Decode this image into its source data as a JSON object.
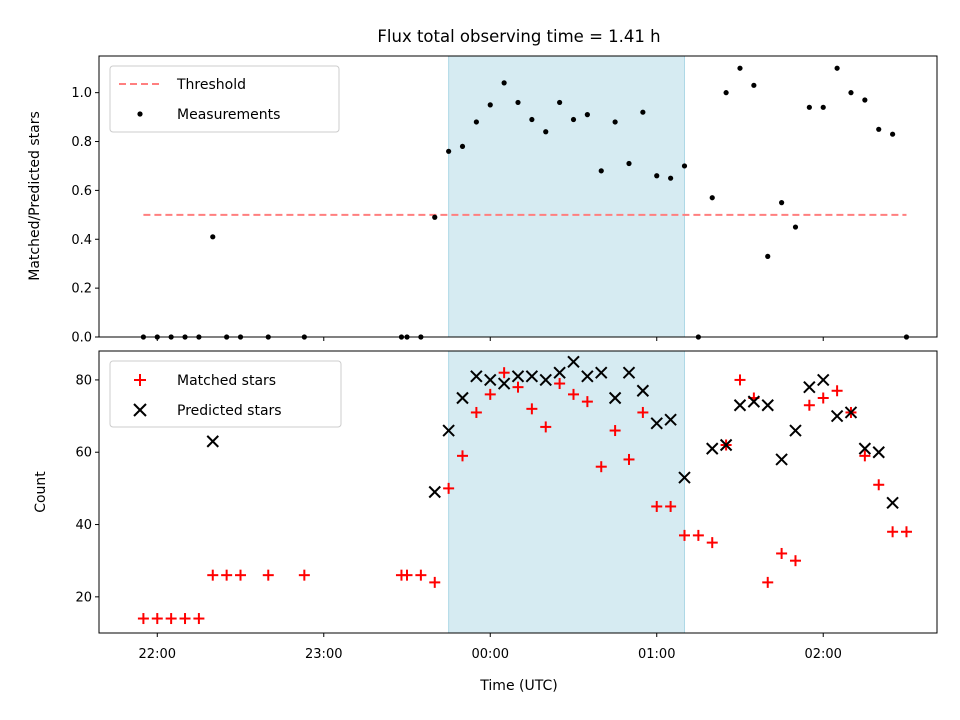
{
  "chart_data": [
    {
      "type": "scatter",
      "title": "Flux total observing time = 1.41 h",
      "xlabel": "",
      "ylabel": "Matched/Predicted stars",
      "ylim": [
        0,
        1.15
      ],
      "yticks": [
        0.0,
        0.2,
        0.4,
        0.6,
        0.8,
        1.0
      ],
      "ytick_labels": [
        "0.0",
        "0.2",
        "0.4",
        "0.6",
        "0.8",
        "1.0"
      ],
      "xticks": [
        "22:00",
        "23:00",
        "00:00",
        "01:00",
        "02:00"
      ],
      "xlim": [
        "21:39",
        "02:41"
      ],
      "shaded_interval": [
        "23:45",
        "01:10"
      ],
      "legend": {
        "placement": "upper left",
        "entries": [
          {
            "label": "Threshold",
            "style": "dashed-line",
            "color": "#ff7f7f"
          },
          {
            "label": "Measurements",
            "style": "dot",
            "color": "#000000"
          }
        ]
      },
      "series": [
        {
          "name": "Threshold",
          "style": "dashed-line",
          "x": [
            "21:55",
            "02:30"
          ],
          "values": [
            0.5,
            0.5
          ]
        },
        {
          "name": "Measurements",
          "style": "dot",
          "x": [
            "21:55",
            "22:00",
            "22:05",
            "22:10",
            "22:15",
            "22:20",
            "22:25",
            "22:30",
            "22:40",
            "22:53",
            "23:28",
            "23:30",
            "23:35",
            "23:40",
            "23:45",
            "23:50",
            "23:55",
            "00:00",
            "00:05",
            "00:10",
            "00:15",
            "00:20",
            "00:25",
            "00:30",
            "00:35",
            "00:40",
            "00:45",
            "00:50",
            "00:55",
            "01:00",
            "01:05",
            "01:10",
            "01:15",
            "01:20",
            "01:25",
            "01:30",
            "01:35",
            "01:40",
            "01:45",
            "01:50",
            "01:55",
            "02:00",
            "02:05",
            "02:10",
            "02:15",
            "02:20",
            "02:25",
            "02:30"
          ],
          "values": [
            0,
            0,
            0,
            0,
            0,
            0.41,
            0,
            0,
            0,
            0,
            0,
            0,
            0,
            0.49,
            0.76,
            0.78,
            0.88,
            0.95,
            1.04,
            0.96,
            0.89,
            0.84,
            0.96,
            0.89,
            0.91,
            0.68,
            0.88,
            0.71,
            0.92,
            0.66,
            0.65,
            0.7,
            0,
            0.57,
            1.0,
            1.1,
            1.03,
            0.33,
            0.55,
            0.45,
            0.94,
            0.94,
            1.1,
            1.0,
            0.97,
            0.85,
            0.83,
            0
          ]
        }
      ]
    },
    {
      "type": "scatter",
      "xlabel": "Time (UTC)",
      "ylabel": "Count",
      "ylim": [
        10,
        88
      ],
      "yticks": [
        20,
        40,
        60,
        80
      ],
      "ytick_labels": [
        "20",
        "40",
        "60",
        "80"
      ],
      "xticks": [
        "22:00",
        "23:00",
        "00:00",
        "01:00",
        "02:00"
      ],
      "xlim": [
        "21:39",
        "02:41"
      ],
      "shaded_interval": [
        "23:45",
        "01:10"
      ],
      "legend": {
        "placement": "upper left",
        "entries": [
          {
            "label": "Matched stars",
            "style": "plus",
            "color": "#ff0000"
          },
          {
            "label": "Predicted stars",
            "style": "x",
            "color": "#000000"
          }
        ]
      },
      "series": [
        {
          "name": "Matched stars",
          "style": "plus",
          "x": [
            "21:55",
            "22:00",
            "22:05",
            "22:10",
            "22:15",
            "22:20",
            "22:25",
            "22:30",
            "22:40",
            "22:53",
            "23:28",
            "23:30",
            "23:35",
            "23:40",
            "23:45",
            "23:50",
            "23:55",
            "00:00",
            "00:05",
            "00:10",
            "00:15",
            "00:20",
            "00:25",
            "00:30",
            "00:35",
            "00:40",
            "00:45",
            "00:50",
            "00:55",
            "01:00",
            "01:05",
            "01:10",
            "01:15",
            "01:20",
            "01:25",
            "01:30",
            "01:35",
            "01:40",
            "01:45",
            "01:50",
            "01:55",
            "02:00",
            "02:05",
            "02:10",
            "02:15",
            "02:20",
            "02:25",
            "02:30"
          ],
          "values": [
            14,
            14,
            14,
            14,
            14,
            26,
            26,
            26,
            26,
            26,
            26,
            26,
            26,
            24,
            50,
            59,
            71,
            76,
            82,
            78,
            72,
            67,
            79,
            76,
            74,
            56,
            66,
            58,
            71,
            45,
            45,
            37,
            37,
            35,
            62,
            80,
            75,
            24,
            32,
            30,
            73,
            75,
            77,
            71,
            59,
            51,
            38,
            38
          ]
        },
        {
          "name": "Predicted stars",
          "style": "x",
          "x": [
            "22:20",
            "23:40",
            "23:45",
            "23:50",
            "23:55",
            "00:00",
            "00:05",
            "00:10",
            "00:15",
            "00:20",
            "00:25",
            "00:30",
            "00:35",
            "00:40",
            "00:45",
            "00:50",
            "00:55",
            "01:00",
            "01:05",
            "01:10",
            "01:20",
            "01:25",
            "01:30",
            "01:35",
            "01:40",
            "01:45",
            "01:50",
            "01:55",
            "02:00",
            "02:05",
            "02:10",
            "02:15",
            "02:20",
            "02:25"
          ],
          "values": [
            63,
            49,
            66,
            75,
            81,
            80,
            79,
            81,
            81,
            80,
            82,
            85,
            81,
            82,
            75,
            82,
            77,
            68,
            69,
            53,
            61,
            62,
            73,
            74,
            73,
            58,
            66,
            78,
            80,
            70,
            71,
            61,
            60,
            46
          ]
        }
      ]
    }
  ]
}
